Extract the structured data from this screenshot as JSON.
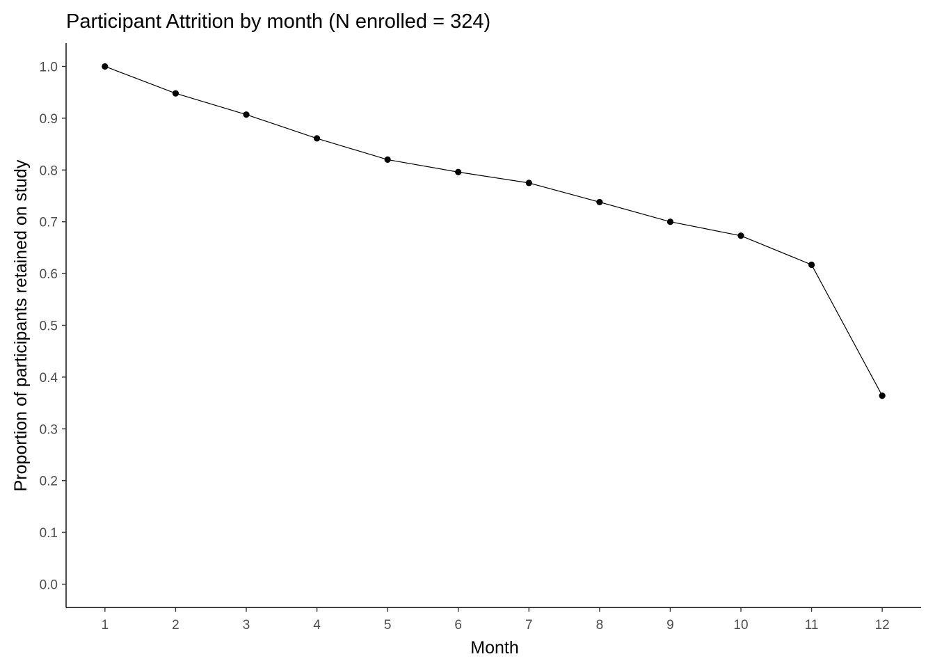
{
  "chart_data": {
    "type": "line",
    "title": "Participant Attrition by month (N enrolled = 324)",
    "xlabel": "Month",
    "ylabel": "Proportion of participants retained on study",
    "x": [
      1,
      2,
      3,
      4,
      5,
      6,
      7,
      8,
      9,
      10,
      11,
      12
    ],
    "values": [
      1.0,
      0.948,
      0.907,
      0.861,
      0.82,
      0.796,
      0.775,
      0.738,
      0.7,
      0.673,
      0.617,
      0.364
    ],
    "x_ticks": [
      "1",
      "2",
      "3",
      "4",
      "5",
      "6",
      "7",
      "8",
      "9",
      "10",
      "11",
      "12"
    ],
    "y_ticks": [
      "0.0",
      "0.1",
      "0.2",
      "0.3",
      "0.4",
      "0.5",
      "0.6",
      "0.7",
      "0.8",
      "0.9",
      "1.0"
    ],
    "xlim": [
      0.45,
      12.55
    ],
    "ylim": [
      -0.045,
      1.045
    ],
    "grid": false,
    "legend": "none",
    "markers": true,
    "color": "#000000"
  }
}
